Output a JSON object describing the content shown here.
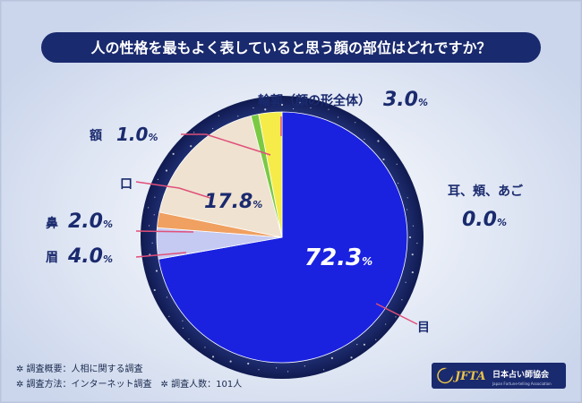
{
  "title": "人の性格を最もよく表していると思う顔の部位はどれですか？",
  "chart_data": {
    "type": "pie",
    "slices": [
      {
        "label": "目",
        "value": 72.3,
        "color": "#1a22e0"
      },
      {
        "label": "眉",
        "value": 4.0,
        "color": "#c5caf2"
      },
      {
        "label": "鼻",
        "value": 2.0,
        "color": "#f0a060"
      },
      {
        "label": "口",
        "value": 17.8,
        "color": "#efe2d0"
      },
      {
        "label": "額",
        "value": 1.0,
        "color": "#7ac943"
      },
      {
        "label": "輪郭（顔の形全体）",
        "value": 3.0,
        "color": "#f5ec4a"
      },
      {
        "label": "耳、頬、あご",
        "value": 0.0,
        "color": "#ffffff"
      }
    ],
    "value_labels": [
      "72.3",
      "4.0",
      "2.0",
      "17.8",
      "1.0",
      "3.0",
      "0.0"
    ],
    "unit": "%"
  },
  "notes": {
    "line1": "✲ 調査概要：人相に関する調査",
    "line2": "✲ 調査方法：インターネット調査　✲ 調査人数：101人"
  },
  "logo": {
    "text": "JFTA",
    "sub": "日本占い師協会",
    "tagline": "Japan Fortune-telling Association"
  },
  "colors": {
    "title_bg": "#1a2a6e",
    "label_text": "#1a2a6e",
    "leader_line": "#e0507a"
  }
}
